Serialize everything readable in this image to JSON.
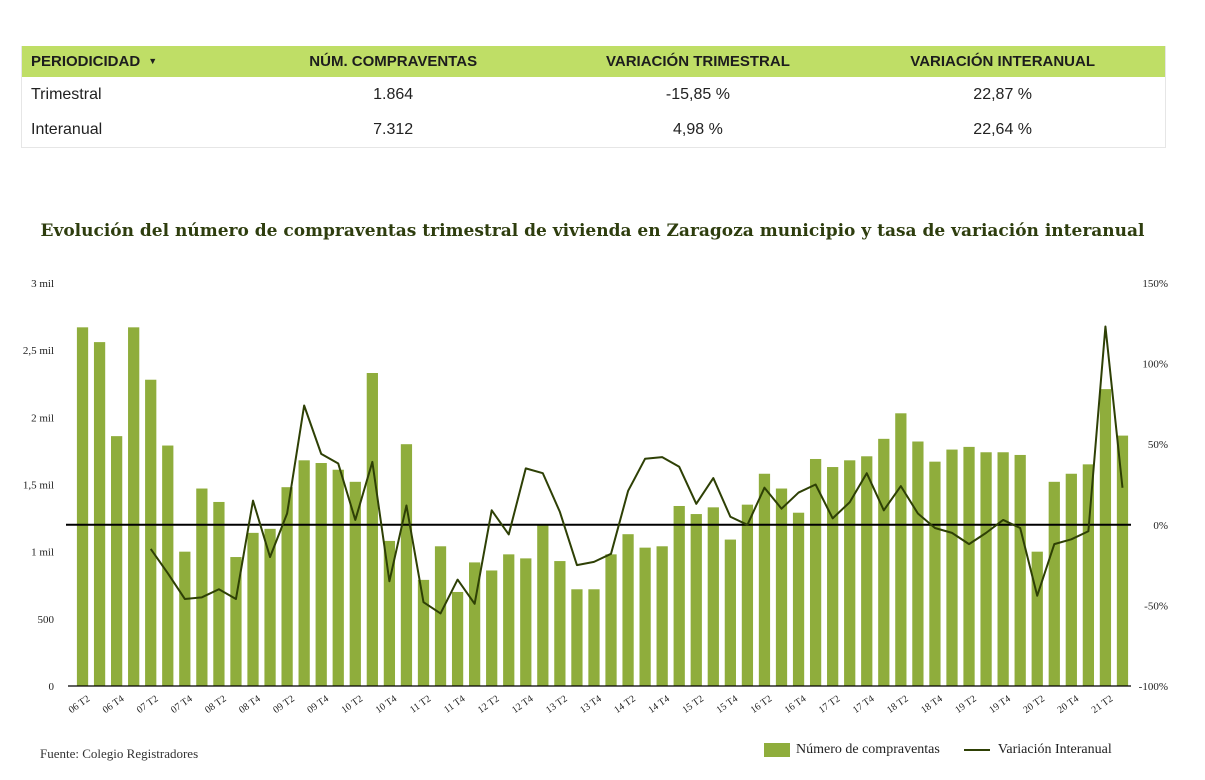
{
  "table": {
    "headers": {
      "period": "PERIODICIDAD",
      "sales": "NÚM. COMPRAVENTAS",
      "quarterly": "VARIACIÓN TRIMESTRAL",
      "yearly": "VARIACIÓN INTERANUAL"
    },
    "caret_icon": "caret-down-icon",
    "rows": [
      {
        "period": "Trimestral",
        "sales": "1.864",
        "quarterly": "-15,85 %",
        "yearly": "22,87 %"
      },
      {
        "period": "Interanual",
        "sales": "7.312",
        "quarterly": "4,98 %",
        "yearly": "22,64 %"
      }
    ]
  },
  "footer": {
    "source": "Fuente: Colegio Registradores",
    "legend_bars": "Número de compraventas",
    "legend_line": "Variación Interanual"
  },
  "chart_data": {
    "type": "bar",
    "title": "Evolución del número de compraventas trimestral de vivienda en Zaragoza municipio y tasa de variación interanual",
    "categories": [
      "06 T2",
      "06 T3",
      "06 T4",
      "07 T1",
      "07 T2",
      "07 T3",
      "07 T4",
      "08 T1",
      "08 T2",
      "08 T3",
      "08 T4",
      "09 T1",
      "09 T2",
      "09 T3",
      "09 T4",
      "10 T1",
      "10 T2",
      "10 T3",
      "10 T4",
      "11 T1",
      "11 T2",
      "11 T3",
      "11 T4",
      "12 T1",
      "12 T2",
      "12 T3",
      "12 T4",
      "13 T1",
      "13 T2",
      "13 T3",
      "13 T4",
      "14 T1",
      "14 T2",
      "14 T3",
      "14 T4",
      "15 T1",
      "15 T2",
      "15 T3",
      "15 T4",
      "16 T1",
      "16 T2",
      "16 T3",
      "16 T4",
      "17 T1",
      "17 T2",
      "17 T3",
      "17 T4",
      "18 T1",
      "18 T2",
      "18 T3",
      "18 T4",
      "19 T1",
      "19 T2",
      "19 T3",
      "19 T4",
      "20 T1",
      "20 T2",
      "20 T3",
      "20 T4",
      "21 T1",
      "21 T2",
      "21 T3"
    ],
    "x_tick_labels": [
      "06 T2",
      "06 T4",
      "07 T2",
      "07 T4",
      "08 T2",
      "08 T4",
      "09 T2",
      "09 T4",
      "10 T2",
      "10 T4",
      "11 T2",
      "11 T4",
      "12 T2",
      "12 T4",
      "13 T2",
      "13 T4",
      "14 T2",
      "14 T4",
      "15 T2",
      "15 T4",
      "16 T2",
      "16 T4",
      "17 T2",
      "17 T4",
      "18 T2",
      "18 T4",
      "19 T2",
      "19 T4",
      "20 T2",
      "20 T4",
      "21 T2"
    ],
    "series": [
      {
        "name": "Número de compraventas",
        "type": "bar",
        "axis": "left",
        "color": "#8fad3c",
        "values": [
          2670,
          2560,
          1860,
          2670,
          2280,
          1790,
          1000,
          1470,
          1370,
          960,
          1140,
          1170,
          1480,
          1680,
          1660,
          1610,
          1520,
          2330,
          1080,
          1800,
          790,
          1040,
          700,
          920,
          860,
          980,
          950,
          1200,
          930,
          720,
          720,
          980,
          1130,
          1030,
          1040,
          1340,
          1280,
          1330,
          1090,
          1350,
          1580,
          1470,
          1290,
          1690,
          1630,
          1680,
          1710,
          1840,
          2030,
          1820,
          1670,
          1760,
          1780,
          1740,
          1740,
          1720,
          1000,
          1520,
          1580,
          1650,
          2210,
          1864
        ]
      },
      {
        "name": "Variación Interanual",
        "type": "line",
        "axis": "right",
        "color": "#2e4005",
        "values": [
          null,
          null,
          null,
          null,
          -15,
          -30,
          -46,
          -45,
          -40,
          -46,
          15,
          -20,
          7,
          74,
          44,
          38,
          3,
          39,
          -35,
          12,
          -48,
          -55,
          -34,
          -49,
          9,
          -6,
          35,
          32,
          8,
          -25,
          -23,
          -18,
          21,
          41,
          42,
          36,
          13,
          29,
          5,
          0,
          23,
          10,
          20,
          25,
          4,
          14,
          32,
          9,
          24,
          7,
          -2,
          -5,
          -12,
          -5,
          3,
          -2,
          -44,
          -12,
          -9,
          -4,
          123,
          23
        ]
      }
    ],
    "y_left": {
      "min": 0,
      "max": 3000,
      "ticks": [
        0,
        500,
        1000,
        1500,
        2000,
        2500,
        3000
      ],
      "tick_labels": [
        "0",
        "500",
        "1 mil",
        "1,5 mil",
        "2 mil",
        "2,5 mil",
        "3 mil"
      ]
    },
    "y_right": {
      "min": -100,
      "max": 150,
      "ticks": [
        -100,
        -50,
        0,
        50,
        100,
        150
      ],
      "tick_labels": [
        "-100%",
        "-50%",
        "0%",
        "50%",
        "100%",
        "150%"
      ]
    },
    "reference_line": 0,
    "grid": false,
    "legend_position": "bottom-right"
  }
}
